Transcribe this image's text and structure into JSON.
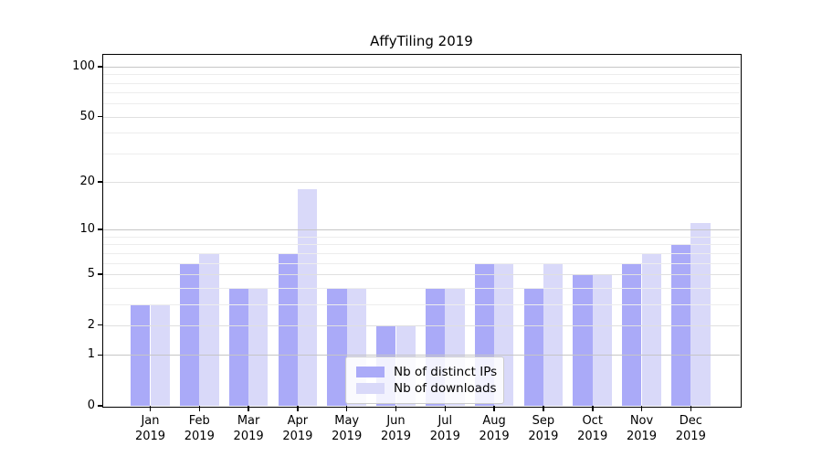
{
  "chart_data": {
    "type": "bar",
    "title": "AffyTiling 2019",
    "categories": [
      "Jan",
      "Feb",
      "Mar",
      "Apr",
      "May",
      "Jun",
      "Jul",
      "Aug",
      "Sep",
      "Oct",
      "Nov",
      "Dec"
    ],
    "x_tick_year": "2019",
    "series": [
      {
        "name": "Nb of distinct IPs",
        "color": "#aaaaf8",
        "values": [
          3,
          6,
          4,
          7,
          4,
          2,
          4,
          6,
          4,
          5,
          6,
          8
        ]
      },
      {
        "name": "Nb of downloads",
        "color": "#d9d9f9",
        "values": [
          3,
          7,
          4,
          18,
          4,
          2,
          4,
          6,
          6,
          5,
          7,
          11
        ]
      }
    ],
    "yscale": "log1p",
    "ylim": [
      0,
      118
    ],
    "yticks": [
      0,
      1,
      2,
      5,
      10,
      20,
      50,
      100
    ],
    "decade_ticks": [
      1,
      10,
      100
    ],
    "minor_gridlines": [
      3,
      4,
      6,
      7,
      8,
      9,
      30,
      40,
      60,
      70,
      80,
      90
    ],
    "grid": "on",
    "legend_position": "lower-center"
  }
}
